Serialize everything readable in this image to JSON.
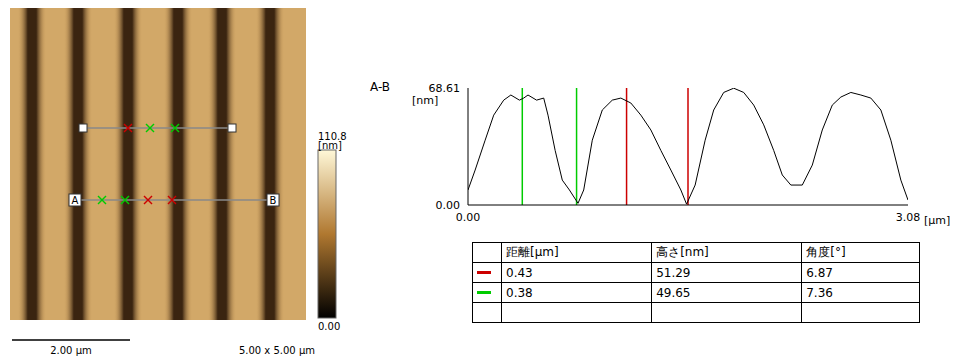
{
  "afm_image": {
    "line_ends": [
      "A",
      "B"
    ],
    "scale_bar_label": "2.00 µm",
    "size_label": "5.00 x 5.00 µm",
    "colorbar": {
      "range": [
        0,
        110.8
      ],
      "ticks": [
        {
          "value": 0,
          "label": "0.00"
        },
        {
          "value": 110.8,
          "label": "110.8"
        }
      ],
      "unit": "[nm]"
    }
  },
  "chart_data": {
    "type": "line",
    "title": "A-B",
    "y_label": "[nm]",
    "x_label": "[µm]",
    "color": "#000000",
    "grid": false,
    "x": [
      0.0,
      0.05,
      0.12,
      0.18,
      0.25,
      0.3,
      0.36,
      0.39,
      0.42,
      0.48,
      0.53,
      0.56,
      0.61,
      0.66,
      0.71,
      0.77,
      0.81,
      0.87,
      0.94,
      1.01,
      1.07,
      1.14,
      1.21,
      1.28,
      1.35,
      1.42,
      1.49,
      1.53,
      1.59,
      1.66,
      1.72,
      1.79,
      1.86,
      1.93,
      2.0,
      2.07,
      2.14,
      2.2,
      2.26,
      2.34,
      2.41,
      2.48,
      2.55,
      2.61,
      2.68,
      2.75,
      2.82,
      2.89,
      2.96,
      3.03,
      3.08
    ],
    "values": [
      8.8,
      20.5,
      38,
      52.7,
      61.5,
      64.5,
      61.5,
      62.7,
      64.5,
      61.5,
      62.7,
      52.7,
      32,
      14.6,
      8.8,
      1,
      8.8,
      38,
      55.7,
      61.5,
      62.7,
      59.8,
      52.7,
      44,
      32,
      20.5,
      8.8,
      0.5,
      11.7,
      38,
      55.7,
      66,
      68.5,
      66,
      58.6,
      47,
      32,
      17.6,
      11.7,
      11.7,
      23.4,
      44,
      58.6,
      63.3,
      66,
      64.5,
      62.7,
      55.7,
      38,
      14.6,
      2.9
    ],
    "xlim": [
      0,
      3.08
    ],
    "xticks": [
      {
        "value": 0,
        "label": "0.00"
      },
      {
        "value": 3.08,
        "label": "3.08"
      }
    ],
    "ylim": [
      0,
      68.61
    ],
    "yticks": [
      {
        "value": 0,
        "label": "0.00"
      },
      {
        "value": 68.61,
        "label": "68.61"
      }
    ],
    "cursor_lines": [
      {
        "color": "#00cc00",
        "x": [
          0.38,
          0.76
        ]
      },
      {
        "color": "#cc0000",
        "x": [
          1.11,
          1.54
        ]
      }
    ]
  },
  "table": {
    "columns": [
      "距離[µm]",
      "高さ[nm]",
      "角度[°]"
    ],
    "rows": [
      {
        "color": "#cc0000",
        "cells": [
          "0.43",
          "51.29",
          "6.87"
        ]
      },
      {
        "color": "#00cc00",
        "cells": [
          "0.38",
          "49.65",
          "7.36"
        ]
      }
    ]
  }
}
